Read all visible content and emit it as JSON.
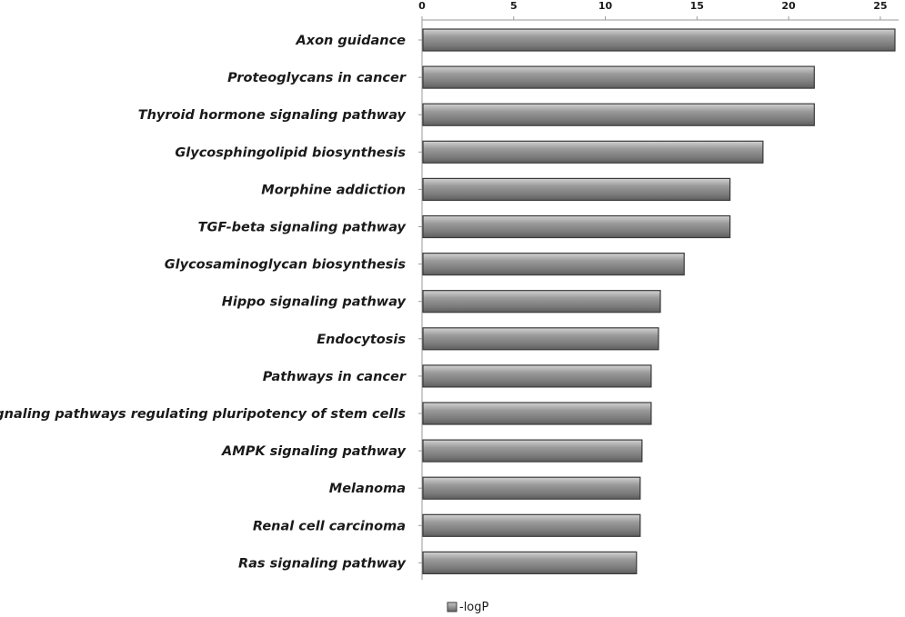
{
  "chart_data": {
    "type": "bar",
    "orientation": "horizontal",
    "categories": [
      "Axon guidance",
      "Proteoglycans in cancer",
      "Thyroid hormone signaling pathway",
      "Glycosphingolipid biosynthesis",
      "Morphine addiction",
      "TGF-beta signaling pathway",
      "Glycosaminoglycan biosynthesis",
      "Hippo signaling pathway",
      "Endocytosis",
      "Pathways in cancer",
      "Signaling pathways regulating pluripotency of stem cells",
      "AMPK signaling pathway",
      "Melanoma",
      "Renal cell carcinoma",
      "Ras signaling pathway"
    ],
    "series": [
      {
        "name": "-logP",
        "values": [
          25.8,
          21.4,
          21.4,
          18.6,
          16.8,
          16.8,
          14.3,
          13.0,
          12.9,
          12.5,
          12.5,
          12.0,
          11.9,
          11.9,
          11.7
        ]
      }
    ],
    "xlim": [
      0,
      26
    ],
    "xticks": [
      "0",
      "5",
      "10",
      "15",
      "20",
      "25"
    ],
    "xtick_values": [
      0,
      5,
      10,
      15,
      20,
      25
    ],
    "x_axis_position": "top",
    "legend_position": "bottom",
    "grid": false,
    "bar_color": "#8c8c8c",
    "bar_edge_color": "#3a3a3a"
  }
}
